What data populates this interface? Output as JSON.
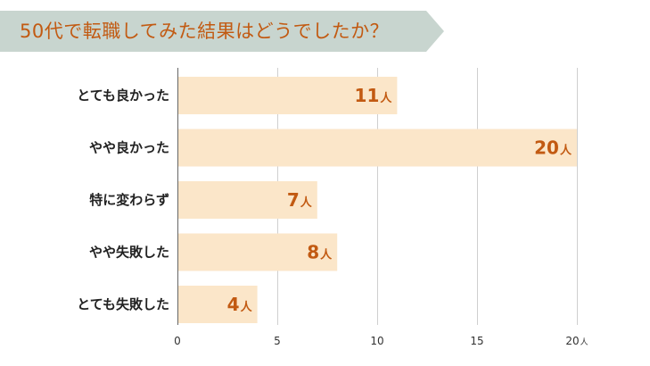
{
  "title": "50代で転職してみた結果はどうでしたか？",
  "colors": {
    "banner": "#c8d5cf",
    "bar": "#fbe6c9",
    "accent": "#c25a12",
    "grid": "#cfcfcf",
    "axis": "#666666"
  },
  "chart_data": {
    "type": "bar",
    "orientation": "horizontal",
    "categories": [
      "とても良かった",
      "やや良かった",
      "特に変わらず",
      "やや失敗した",
      "とても失敗した"
    ],
    "values": [
      11,
      20,
      7,
      8,
      4
    ],
    "value_unit": "人",
    "xlim": [
      0,
      20
    ],
    "x_ticks": [
      "0",
      "5",
      "10",
      "15",
      "20"
    ],
    "x_tick_unit": "人",
    "grid": true,
    "legend": "none"
  }
}
